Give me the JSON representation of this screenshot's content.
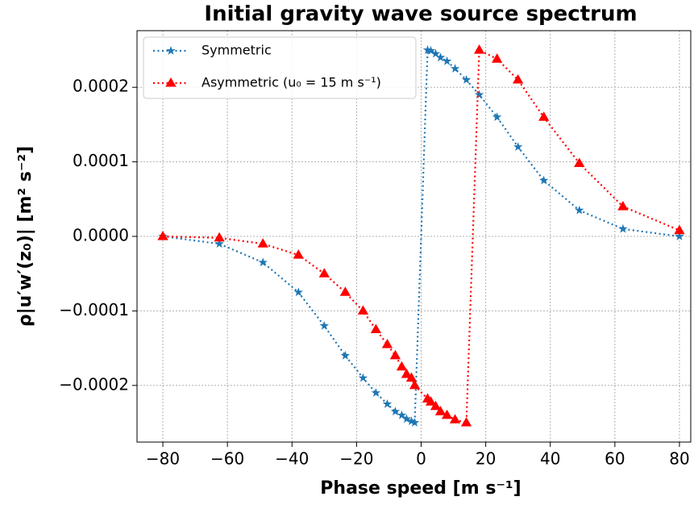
{
  "chart_data": {
    "type": "line",
    "title": "Initial gravity wave source spectrum",
    "x_label": "Phase speed [m s⁻¹]",
    "y_label": "ρ|u′w′(z₀)| [m² s⁻²]",
    "xlim": [
      -88,
      83.5
    ],
    "ylim": [
      -0.000276,
      0.000276
    ],
    "xticks": [
      {
        "value": -80,
        "label": "−80"
      },
      {
        "value": -60,
        "label": "−60"
      },
      {
        "value": -40,
        "label": "−40"
      },
      {
        "value": -20,
        "label": "−20"
      },
      0,
      20,
      40,
      60,
      80
    ],
    "yticks": [
      {
        "value": -0.0002,
        "label": "−0.0002"
      },
      {
        "value": -0.0001,
        "label": "−0.0001"
      },
      {
        "value": 0,
        "label": "0.0000"
      },
      {
        "value": 0.0001,
        "label": "0.0001"
      },
      {
        "value": 0.0002,
        "label": "0.0002"
      }
    ],
    "grid": true,
    "legend": "upper left",
    "series": [
      {
        "name": "Symmetric",
        "color": "#1f77b4",
        "marker": "star",
        "x": [
          -80,
          -62.5,
          -49,
          -38,
          -30,
          -23.5,
          -18,
          -14,
          -10.5,
          -8,
          -6,
          -4.5,
          -3,
          -2,
          2,
          3,
          4.5,
          6,
          8,
          10.5,
          14,
          18,
          23.5,
          30,
          38,
          49,
          62.5,
          80
        ],
        "values": [
          0,
          -1e-05,
          -3.5e-05,
          -7.5e-05,
          -0.00012,
          -0.00016,
          -0.00019,
          -0.00021,
          -0.000225,
          -0.000235,
          -0.00024,
          -0.000245,
          -0.000248,
          -0.00025,
          0.00025,
          0.000249,
          0.000245,
          0.00024,
          0.000235,
          0.000225,
          0.00021,
          0.00019,
          0.00016,
          0.00012,
          7.5e-05,
          3.5e-05,
          1e-05,
          0
        ]
      },
      {
        "name": "Asymmetric (u₀ = 15 m s⁻¹)",
        "color": "#ff0000",
        "marker": "triangle",
        "x": [
          -80,
          -62.5,
          -49,
          -38,
          -30,
          -23.5,
          -18,
          -14,
          -10.5,
          -8,
          -6,
          -4.5,
          -3,
          -2,
          2,
          3,
          4.5,
          6,
          8,
          10.5,
          14,
          18,
          23.5,
          30,
          38,
          49,
          62.5,
          80
        ],
        "values": [
          0,
          -2e-06,
          -1e-05,
          -2.5e-05,
          -5e-05,
          -7.5e-05,
          -0.0001,
          -0.000125,
          -0.000145,
          -0.00016,
          -0.000175,
          -0.000185,
          -0.00019,
          -0.0002,
          -0.000218,
          -0.000222,
          -0.000228,
          -0.000235,
          -0.00024,
          -0.000246,
          -0.00025,
          0.00025,
          0.000238,
          0.00021,
          0.00016,
          9.8e-05,
          4e-05,
          8e-06
        ]
      }
    ]
  }
}
